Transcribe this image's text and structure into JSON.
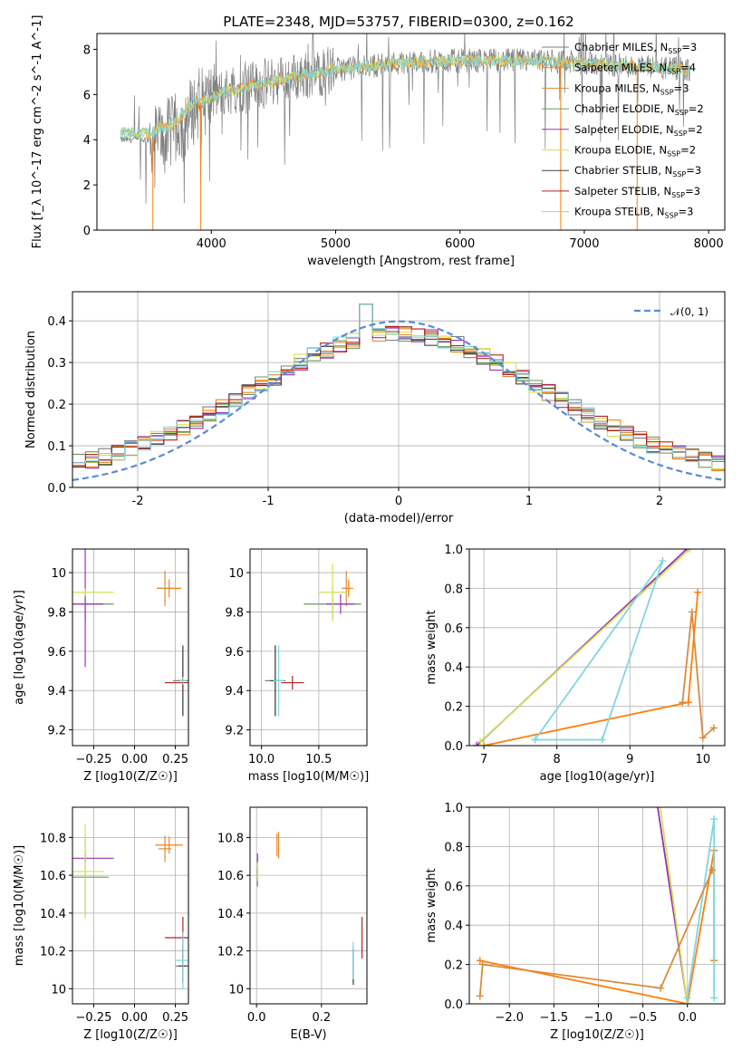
{
  "figure": {
    "title": "PLATE=2348, MJD=53757, FIBERID=0300, z=0.162"
  },
  "models": [
    {
      "name": "Chabrier MILES",
      "nssp": "3",
      "color": "#7f7f7f"
    },
    {
      "name": "Salpeter MILES",
      "nssp": "4",
      "color": "#ff7f0e"
    },
    {
      "name": "Kroupa MILES",
      "nssp": "3",
      "color": "#d98c3a"
    },
    {
      "name": "Chabrier ELODIE",
      "nssp": "2",
      "color": "#6a9a5e"
    },
    {
      "name": "Salpeter ELODIE",
      "nssp": "2",
      "color": "#9b30b5"
    },
    {
      "name": "Kroupa ELODIE",
      "nssp": "2",
      "color": "#d4e157"
    },
    {
      "name": "Chabrier STELIB",
      "nssp": "3",
      "color": "#444444"
    },
    {
      "name": "Salpeter STELIB",
      "nssp": "3",
      "color": "#b22222"
    },
    {
      "name": "Kroupa STELIB",
      "nssp": "3",
      "color": "#7fd6e0"
    }
  ],
  "chart_data": [
    {
      "id": "spectrum",
      "type": "line",
      "xlabel": "wavelength [Angstrom, rest frame]",
      "ylabel": "Flux [f_λ 10^-17 erg cm^-2 s^-1 A^-1]",
      "xlim": [
        3080,
        8130
      ],
      "ylim": [
        0,
        8.7
      ],
      "xticks": [
        4000,
        5000,
        6000,
        7000,
        8000
      ],
      "yticks": [
        0,
        2,
        4,
        6,
        8
      ],
      "legend": "right",
      "x_range_data": [
        3270,
        7850
      ],
      "observed_trend": {
        "x": [
          3270,
          3500,
          3700,
          3900,
          4100,
          4500,
          5000,
          5500,
          6000,
          6500,
          7000,
          7500,
          7850
        ],
        "y": [
          4.0,
          4.0,
          4.4,
          5.6,
          6.1,
          6.6,
          7.1,
          7.4,
          7.5,
          7.5,
          7.4,
          7.2,
          7.1
        ]
      }
    },
    {
      "id": "residuals",
      "type": "line",
      "xlabel": "(data-model)/error",
      "ylabel": "Normed distribution",
      "xlim": [
        -2.5,
        2.5
      ],
      "ylim": [
        0,
        0.47
      ],
      "xticks": [
        -2,
        -1,
        0,
        1,
        2
      ],
      "yticks": [
        0.0,
        0.1,
        0.2,
        0.3,
        0.4
      ],
      "grid": true,
      "legend": "top-right",
      "reference": {
        "name": "𝒩(0, 1)",
        "color": "#5a8bd6"
      }
    },
    {
      "id": "age_vs_Z",
      "type": "scatter",
      "xlabel": "Z [log10(Z/Z☉)]",
      "ylabel": "age  [log10(age/yr)]",
      "xlim": [
        -0.38,
        0.33
      ],
      "ylim": [
        9.12,
        10.12
      ],
      "xticks": [
        -0.25,
        0.0,
        0.25
      ],
      "xticklabels": [
        "−0.25",
        "0.00",
        "0.25"
      ],
      "yticks": [
        9.2,
        9.4,
        9.6,
        9.8,
        10.0
      ],
      "grid": true,
      "points": [
        {
          "m": 0,
          "x": 0.296,
          "y": 9.45,
          "ex": 0.12,
          "ey": 0.34
        },
        {
          "m": 1,
          "x": 0.212,
          "y": 9.92,
          "ex": 0.15,
          "ey": 0.09
        },
        {
          "m": 2,
          "x": 0.186,
          "y": 9.92,
          "ex": 0.1,
          "ey": 0.18
        },
        {
          "m": 3,
          "x": -0.302,
          "y": 9.84,
          "ex": 0.35,
          "ey": 0.17
        },
        {
          "m": 4,
          "x": -0.302,
          "y": 9.84,
          "ex": 0.22,
          "ey": 0.64
        },
        {
          "m": 5,
          "x": -0.302,
          "y": 9.9,
          "ex": 0.35,
          "ey": 0.04
        },
        {
          "m": 6,
          "x": 0.296,
          "y": 9.45,
          "ex": 0.04,
          "ey": 0.36
        },
        {
          "m": 7,
          "x": 0.296,
          "y": 9.44,
          "ex": 0.22,
          "ey": 0.07
        },
        {
          "m": 8,
          "x": 0.296,
          "y": 9.45,
          "ex": 0.04,
          "ey": 0.04
        }
      ]
    },
    {
      "id": "age_vs_mass",
      "type": "scatter",
      "xlabel": "mass [log10(M/M☉)]",
      "ylabel": "",
      "xlim": [
        9.9,
        10.92
      ],
      "ylim": [
        9.12,
        10.12
      ],
      "xticks": [
        10.0,
        10.5
      ],
      "xticklabels": [
        "10.0",
        "10.5"
      ],
      "yticks": [
        9.2,
        9.4,
        9.6,
        9.8,
        10.0
      ],
      "grid": true,
      "points": [
        {
          "m": 0,
          "x": 10.12,
          "y": 9.45,
          "ex": 0.18,
          "ey": 0.36
        },
        {
          "m": 1,
          "x": 10.76,
          "y": 9.92,
          "ex": 0.08,
          "ey": 0.09
        },
        {
          "m": 2,
          "x": 10.74,
          "y": 9.92,
          "ex": 0.08,
          "ey": 0.18
        },
        {
          "m": 3,
          "x": 10.62,
          "y": 9.84,
          "ex": 0.5,
          "ey": 0.17
        },
        {
          "m": 4,
          "x": 10.69,
          "y": 9.84,
          "ex": 0.25,
          "ey": 0.1
        },
        {
          "m": 5,
          "x": 10.62,
          "y": 9.9,
          "ex": 0.25,
          "ey": 0.29
        },
        {
          "m": 6,
          "x": 10.12,
          "y": 9.45,
          "ex": 0.09,
          "ey": 0.36
        },
        {
          "m": 7,
          "x": 10.27,
          "y": 9.44,
          "ex": 0.2,
          "ey": 0.07
        },
        {
          "m": 8,
          "x": 10.15,
          "y": 9.45,
          "ex": 0.09,
          "ey": 0.36
        }
      ]
    },
    {
      "id": "mass_weight_vs_age",
      "type": "line",
      "xlabel": "age  [log10(age/yr)]",
      "ylabel": "mass weight",
      "xlim": [
        6.8,
        10.3
      ],
      "ylim": [
        0,
        1.0
      ],
      "xticks": [
        7,
        8,
        9,
        10
      ],
      "yticks": [
        0.0,
        0.2,
        0.4,
        0.6,
        0.8,
        1.0
      ],
      "yticklabels": [
        "0.0",
        "0.2",
        "0.4",
        "0.6",
        "0.8",
        "1.0"
      ],
      "grid": true,
      "series": [
        {
          "m": 1,
          "x": [
            7.0,
            9.8,
            9.93
          ],
          "y": [
            0.0,
            0.22,
            0.78
          ]
        },
        {
          "m": 4,
          "x": [
            6.9,
            9.78
          ],
          "y": [
            0.0,
            1.0
          ]
        },
        {
          "m": 5,
          "x": [
            6.95,
            9.82
          ],
          "y": [
            0.02,
            1.0
          ]
        },
        {
          "m": 8,
          "x": [
            7.7,
            8.62,
            9.45,
            7.7
          ],
          "y": [
            0.03,
            0.03,
            0.94,
            0.03
          ]
        },
        {
          "m": 2,
          "x": [
            9.72,
            9.85,
            10.0,
            10.15
          ],
          "y": [
            0.22,
            0.68,
            0.04,
            0.09
          ]
        }
      ]
    },
    {
      "id": "mass_vs_Z",
      "type": "scatter",
      "xlabel": "Z [log10(Z/Z☉)]",
      "ylabel": "mass [log10(M/M☉)]",
      "xlim": [
        -0.38,
        0.33
      ],
      "ylim": [
        9.92,
        10.96
      ],
      "xticks": [
        -0.25,
        0.0,
        0.25
      ],
      "xticklabels": [
        "−0.25",
        "0.00",
        "0.25"
      ],
      "yticks": [
        10.0,
        10.2,
        10.4,
        10.6,
        10.8
      ],
      "grid": true,
      "points": [
        {
          "m": 0,
          "x": 0.296,
          "y": 10.12,
          "ex": 0.09,
          "ey": 0.18
        },
        {
          "m": 1,
          "x": 0.212,
          "y": 10.76,
          "ex": 0.17,
          "ey": 0.09
        },
        {
          "m": 2,
          "x": 0.186,
          "y": 10.74,
          "ex": 0.08,
          "ey": 0.14
        },
        {
          "m": 3,
          "x": -0.302,
          "y": 10.59,
          "ex": 0.29,
          "ey": 0.4
        },
        {
          "m": 4,
          "x": -0.302,
          "y": 10.69,
          "ex": 0.35,
          "ey": 0.05
        },
        {
          "m": 5,
          "x": -0.302,
          "y": 10.62,
          "ex": 0.23,
          "ey": 0.5
        },
        {
          "m": 6,
          "x": 0.296,
          "y": 10.12,
          "ex": 0.05,
          "ey": 0.18
        },
        {
          "m": 7,
          "x": 0.296,
          "y": 10.27,
          "ex": 0.22,
          "ey": 0.22
        },
        {
          "m": 8,
          "x": 0.296,
          "y": 10.15,
          "ex": 0.09,
          "ey": 0.3
        }
      ]
    },
    {
      "id": "mass_vs_ebv",
      "type": "scatter",
      "xlabel": "E(B-V)",
      "ylabel": "",
      "xlim": [
        -0.02,
        0.34
      ],
      "ylim": [
        9.92,
        10.96
      ],
      "xticks": [
        0.0,
        0.2
      ],
      "xticklabels": [
        "0.0",
        "0.2"
      ],
      "yticks": [
        10.0,
        10.2,
        10.4,
        10.6,
        10.8
      ],
      "grid": true,
      "points": [
        {
          "m": 0,
          "x": 0.298,
          "y": 10.12,
          "ex": 0,
          "ey": 0.18
        },
        {
          "m": 1,
          "x": 0.063,
          "y": 10.76,
          "ex": 0,
          "ey": 0.12
        },
        {
          "m": 2,
          "x": 0.068,
          "y": 10.76,
          "ex": 0,
          "ey": 0.14
        },
        {
          "m": 3,
          "x": 0.003,
          "y": 10.59,
          "ex": 0,
          "ey": 0.1
        },
        {
          "m": 4,
          "x": 0.003,
          "y": 10.69,
          "ex": 0,
          "ey": 0.05
        },
        {
          "m": 5,
          "x": 0.003,
          "y": 10.62,
          "ex": 0,
          "ey": 0.1
        },
        {
          "m": 6,
          "x": 0.298,
          "y": 10.12,
          "ex": 0,
          "ey": 0.2
        },
        {
          "m": 7,
          "x": 0.325,
          "y": 10.27,
          "ex": 0,
          "ey": 0.22
        },
        {
          "m": 8,
          "x": 0.298,
          "y": 10.15,
          "ex": 0,
          "ey": 0.2
        }
      ]
    },
    {
      "id": "mass_weight_vs_Z",
      "type": "line",
      "xlabel": "Z [log10(Z/Z☉)]",
      "ylabel": "mass weight",
      "xlim": [
        -2.45,
        0.42
      ],
      "ylim": [
        0,
        1.0
      ],
      "xticks": [
        -2.0,
        -1.5,
        -1.0,
        -0.5,
        0.0
      ],
      "xticklabels": [
        "−2.0",
        "−1.5",
        "−1.0",
        "−0.5",
        "0.0"
      ],
      "yticks": [
        0.0,
        0.2,
        0.4,
        0.6,
        0.8,
        1.0
      ],
      "yticklabels": [
        "0.0",
        "0.2",
        "0.4",
        "0.6",
        "0.8",
        "1.0"
      ],
      "grid": true,
      "series": [
        {
          "m": 1,
          "x": [
            -2.33,
            0.0,
            0.3,
            0.3
          ],
          "y": [
            0.22,
            0.0,
            0.78,
            0.22
          ]
        },
        {
          "m": 4,
          "x": [
            -0.35,
            0.0
          ],
          "y": [
            1.05,
            0.0
          ]
        },
        {
          "m": 5,
          "x": [
            -0.32,
            0.0
          ],
          "y": [
            1.05,
            0.0
          ]
        },
        {
          "m": 8,
          "x": [
            0.0,
            0.3,
            0.3
          ],
          "y": [
            0.03,
            0.94,
            0.03
          ]
        },
        {
          "m": 2,
          "x": [
            -2.33,
            -2.3,
            -0.3,
            0.28
          ],
          "y": [
            0.04,
            0.2,
            0.08,
            0.68
          ]
        }
      ]
    }
  ]
}
